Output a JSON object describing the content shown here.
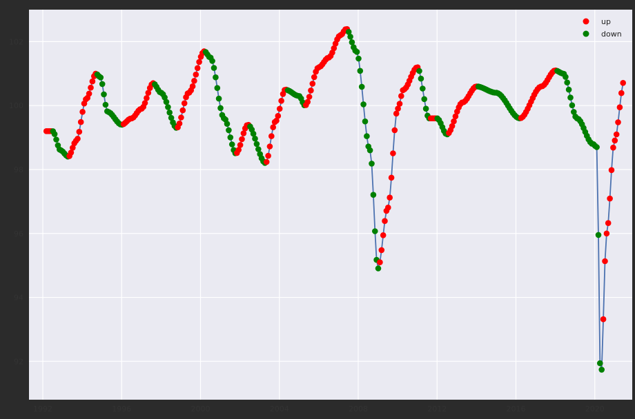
{
  "chart_data": {
    "type": "line",
    "grid": true,
    "legend_placement": "top-right",
    "legend": [
      {
        "label": "up",
        "color": "#ff0000"
      },
      {
        "label": "down",
        "color": "#008000"
      }
    ],
    "colors": {
      "background": "#eaeaf2",
      "frame": "#2b2b2b",
      "line": "#4c72b0",
      "up": "#ff0000",
      "down": "#008000",
      "grid": "#ffffff"
    },
    "xlim": [
      1991.3,
      2021.9
    ],
    "ylim": [
      90.8,
      103.0
    ],
    "x_ticks": [
      1992,
      1996,
      2000,
      2004,
      2008,
      2012,
      2016,
      2020
    ],
    "x_tick_labels": [
      "1992",
      "1996",
      "2000",
      "2004",
      "2008",
      "2012",
      "2016",
      "2020"
    ],
    "y_ticks": [
      92,
      94,
      96,
      98,
      100,
      102
    ],
    "y_tick_labels": [
      "92",
      "94",
      "96",
      "98",
      "100",
      "102"
    ],
    "anchors": [
      [
        1992.1,
        99.2
      ],
      [
        1992.5,
        99.2
      ],
      [
        1992.9,
        98.6
      ],
      [
        1993.3,
        98.4
      ],
      [
        1993.7,
        98.9
      ],
      [
        1994.2,
        100.2
      ],
      [
        1994.7,
        101.0
      ],
      [
        1994.9,
        100.9
      ],
      [
        1995.3,
        99.8
      ],
      [
        1996.0,
        99.4
      ],
      [
        1996.5,
        99.6
      ],
      [
        1997.0,
        99.9
      ],
      [
        1997.6,
        100.7
      ],
      [
        1998.0,
        100.4
      ],
      [
        1998.8,
        99.3
      ],
      [
        1999.4,
        100.4
      ],
      [
        2000.2,
        101.7
      ],
      [
        2000.5,
        101.5
      ],
      [
        2001.2,
        99.6
      ],
      [
        2001.8,
        98.5
      ],
      [
        2002.4,
        99.4
      ],
      [
        2003.3,
        98.2
      ],
      [
        2003.8,
        99.5
      ],
      [
        2004.3,
        100.5
      ],
      [
        2005.0,
        100.3
      ],
      [
        2005.3,
        100.0
      ],
      [
        2006.0,
        101.2
      ],
      [
        2006.5,
        101.5
      ],
      [
        2007.1,
        102.2
      ],
      [
        2007.4,
        102.4
      ],
      [
        2007.9,
        101.7
      ],
      [
        2008.6,
        98.6
      ],
      [
        2009.0,
        94.9
      ],
      [
        2009.5,
        96.8
      ],
      [
        2010.0,
        99.9
      ],
      [
        2010.3,
        100.5
      ],
      [
        2011.0,
        101.2
      ],
      [
        2011.6,
        99.6
      ],
      [
        2012.0,
        99.6
      ],
      [
        2012.5,
        99.1
      ],
      [
        2013.3,
        100.1
      ],
      [
        2014.0,
        100.6
      ],
      [
        2015.0,
        100.4
      ],
      [
        2016.2,
        99.6
      ],
      [
        2017.3,
        100.6
      ],
      [
        2018.0,
        101.1
      ],
      [
        2018.4,
        101.0
      ],
      [
        2019.1,
        99.6
      ],
      [
        2019.9,
        98.8
      ],
      [
        2020.1,
        98.7
      ],
      [
        2020.3,
        91.4
      ],
      [
        2020.6,
        96.0
      ],
      [
        2021.0,
        98.9
      ],
      [
        2021.5,
        100.8
      ]
    ]
  }
}
